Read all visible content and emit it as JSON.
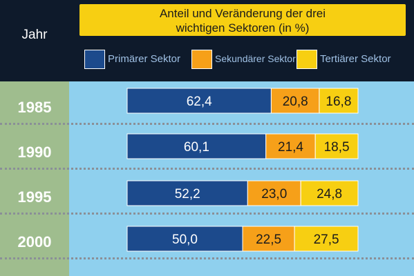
{
  "header": {
    "year_label": "Jahr",
    "title_lines": [
      "Anteil und Veränderung der drei",
      "wichtigen Sektoren (in %)"
    ]
  },
  "colors": {
    "primary": "#1c4a8c",
    "secondary": "#f6a019",
    "tertiary": "#f7cf12",
    "title_bg": "#f7cf12",
    "sky": "#8fd0ee",
    "sage": "#9fbd8e",
    "navy_band": "#0e1a2b"
  },
  "chart_data": {
    "type": "bar",
    "orientation": "horizontal",
    "stacked": true,
    "title": "Anteil und Veränderung der drei wichtigen Sektoren (in %)",
    "categories": [
      "1985",
      "1990",
      "1995",
      "2000"
    ],
    "series": [
      {
        "name": "Primärer Sektor",
        "values": [
          62.4,
          60.1,
          52.2,
          50.0
        ],
        "labels": [
          "62,4",
          "60,1",
          "52,2",
          "50,0"
        ]
      },
      {
        "name": "Sekundärer Sektor",
        "values": [
          20.8,
          21.4,
          23.0,
          22.5
        ],
        "labels": [
          "20,8",
          "21,4",
          "23,0",
          "22,5"
        ]
      },
      {
        "name": "Tertiärer Sektor",
        "values": [
          16.8,
          18.5,
          24.8,
          27.5
        ],
        "labels": [
          "16,8",
          "18,5",
          "24,8",
          "27,5"
        ]
      }
    ],
    "xlim": [
      0,
      100
    ],
    "legend_position": "top",
    "grid": false
  }
}
